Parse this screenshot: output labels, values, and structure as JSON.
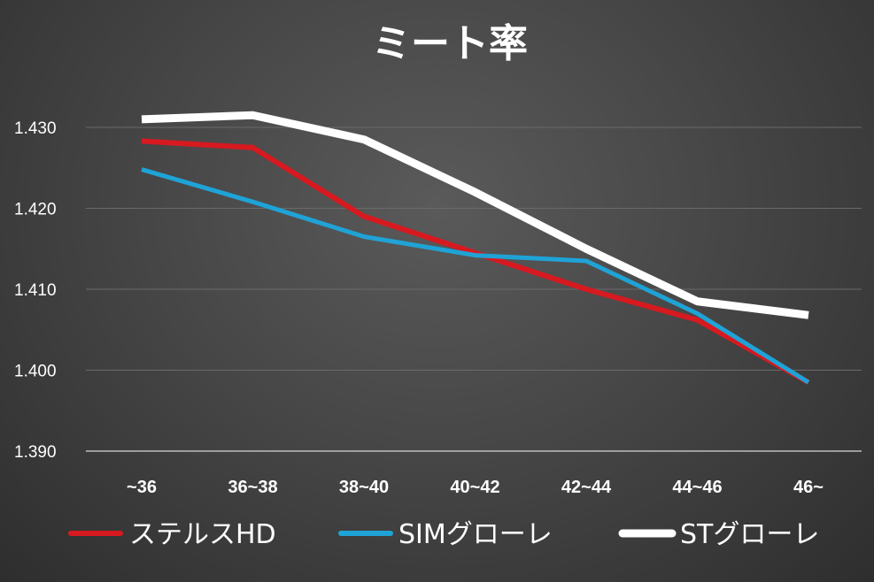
{
  "chart_data": {
    "type": "line",
    "title": "ミート率",
    "categories": [
      "~36",
      "36~38",
      "38~40",
      "40~42",
      "42~44",
      "44~46",
      "46~"
    ],
    "ylim": [
      1.39,
      1.43
    ],
    "yticks": [
      "1.390",
      "1.400",
      "1.410",
      "1.420",
      "1.430"
    ],
    "grid": true,
    "legend": "bottom",
    "series": [
      {
        "name": "ステルスHD",
        "color": "#d71920",
        "values": [
          1.4283,
          1.4275,
          1.419,
          1.4145,
          1.41,
          1.4062,
          1.3985
        ]
      },
      {
        "name": "SIMグローレ",
        "color": "#1fa3d6",
        "values": [
          1.4248,
          1.4208,
          1.4165,
          1.4142,
          1.4135,
          1.407,
          1.3985
        ]
      },
      {
        "name": "STグローレ",
        "color": "#ffffff",
        "values": [
          1.431,
          1.4315,
          1.4285,
          1.422,
          1.415,
          1.4085,
          1.4068
        ]
      }
    ]
  }
}
